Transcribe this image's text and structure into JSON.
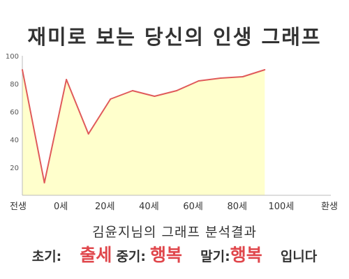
{
  "chart_data": {
    "type": "area",
    "title": "재미로 보는 당신의 인생 그래프",
    "x_labels": [
      "전생",
      "0세",
      "20세",
      "40세",
      "60세",
      "80세",
      "100세",
      "환생"
    ],
    "ylim": [
      0,
      100
    ],
    "y_ticks": [
      20,
      40,
      60,
      80,
      100
    ],
    "grid": false,
    "points": [
      {
        "x": "전생",
        "y": 90
      },
      {
        "x": "0세",
        "y": 9
      },
      {
        "x": "20세",
        "y": 83
      },
      {
        "x": "30세",
        "y": 44
      },
      {
        "x": "40세",
        "y": 69
      },
      {
        "x": "50세",
        "y": 75
      },
      {
        "x": "60세",
        "y": 71
      },
      {
        "x": "70세",
        "y": 75
      },
      {
        "x": "80세",
        "y": 82
      },
      {
        "x": "90세",
        "y": 84
      },
      {
        "x": "100세",
        "y": 85
      },
      {
        "x": "환생",
        "y": 90
      }
    ],
    "colors": {
      "line": "#e05a5a",
      "fill": "#ffffcc",
      "axis": "#bbbbbb"
    }
  },
  "result": {
    "subtitle": "김윤지님의 그래프 분석결과",
    "early_label": "초기:",
    "early_value": "출세",
    "middle_label": "중기:",
    "middle_value": "행복",
    "late_label": "말기:",
    "late_value": "행복",
    "ending": "입니다"
  }
}
